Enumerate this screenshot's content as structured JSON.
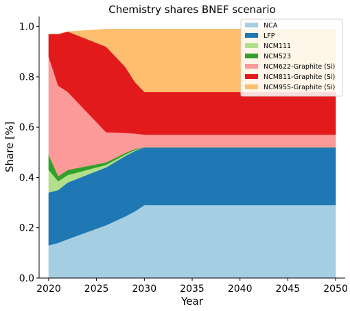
{
  "chart_data": {
    "type": "area",
    "stacked": true,
    "title": "Chemistry shares BNEF scenario",
    "xlabel": "Year",
    "ylabel": "Share [%]",
    "xlim": [
      2019,
      2051
    ],
    "ylim": [
      0,
      1.04
    ],
    "xticks": [
      2020,
      2025,
      2030,
      2035,
      2040,
      2045,
      2050
    ],
    "yticks": [
      0.0,
      0.2,
      0.4,
      0.6,
      0.8,
      1.0
    ],
    "ytick_labels": [
      "0.0",
      "0.2",
      "0.4",
      "0.6",
      "0.8",
      "1.0"
    ],
    "legend_position": "top-right",
    "grid": false,
    "x": [
      2020,
      2021,
      2022,
      2026,
      2028,
      2029,
      2030,
      2050
    ],
    "series": [
      {
        "name": "NCA",
        "color": "#a6cee3",
        "values": [
          0.13,
          0.14,
          0.155,
          0.21,
          0.245,
          0.265,
          0.29,
          0.29
        ]
      },
      {
        "name": "LFP",
        "color": "#1f78b4",
        "values": [
          0.21,
          0.21,
          0.225,
          0.23,
          0.24,
          0.24,
          0.23,
          0.23
        ]
      },
      {
        "name": "NCM111",
        "color": "#b2df8a",
        "values": [
          0.09,
          0.035,
          0.03,
          0.01,
          0.006,
          0.004,
          0.0,
          0.0
        ]
      },
      {
        "name": "NCM523",
        "color": "#33a02c",
        "values": [
          0.06,
          0.02,
          0.02,
          0.01,
          0.006,
          0.004,
          0.0,
          0.0
        ]
      },
      {
        "name": "NCM622-Graphite (Si)",
        "color": "#fb9a99",
        "values": [
          0.39,
          0.36,
          0.31,
          0.12,
          0.08,
          0.062,
          0.05,
          0.05
        ]
      },
      {
        "name": "NCM811-Graphite (Si)",
        "color": "#e31a1c",
        "values": [
          0.09,
          0.205,
          0.24,
          0.34,
          0.263,
          0.205,
          0.17,
          0.17
        ]
      },
      {
        "name": "NCM955-Graphite (Si)",
        "color": "#fdbf6f",
        "values": [
          0.0,
          0.0,
          0.0,
          0.07,
          0.15,
          0.21,
          0.25,
          0.25
        ]
      }
    ]
  }
}
